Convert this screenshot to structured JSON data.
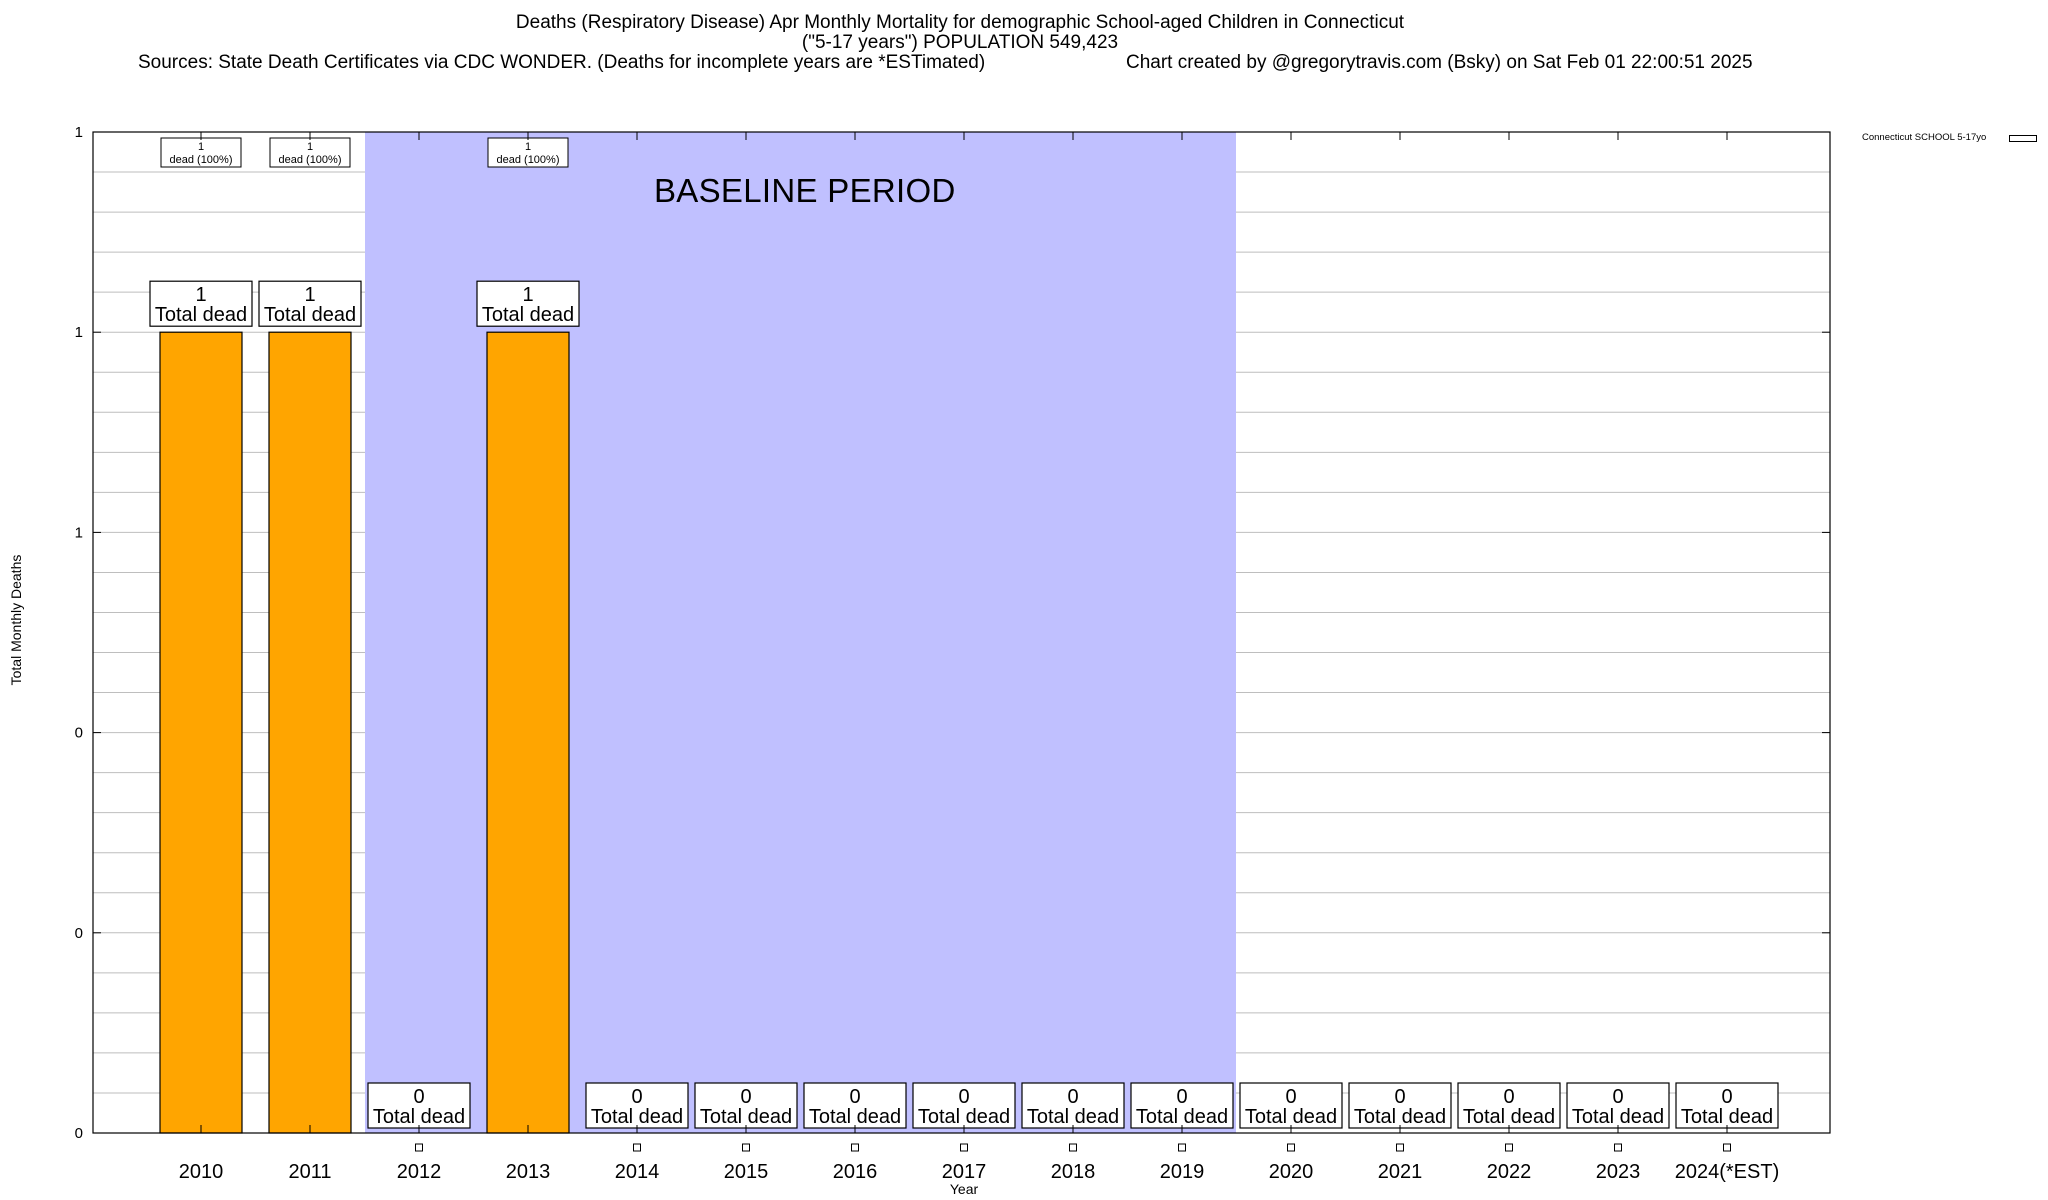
{
  "title": {
    "line1": "Deaths (Respiratory Disease) Apr Monthly Mortality for demographic School-aged Children in Connecticut",
    "line2": "(\"5-17 years\") POPULATION 549,423",
    "sources": "Sources: State Death Certificates via CDC WONDER. (Deaths for incomplete years are *ESTimated)",
    "credit": "Chart created by @gregorytravis.com (Bsky) on Sat Feb 01 22:00:51 2025"
  },
  "colors": {
    "bar": "#FFA500",
    "baseline_shade": "#C0C0FF",
    "grid": "#BEBEBE",
    "axis": "#000000"
  },
  "chart_data": {
    "type": "bar",
    "xlabel": "Year",
    "ylabel": "Total Monthly Deaths",
    "ylim": [
      0,
      1.25
    ],
    "ytick_values": [
      0,
      0.25,
      0.5,
      0.75,
      1,
      1.25
    ],
    "ytick_labels": [
      "0",
      "0",
      "0",
      "1",
      "1",
      "1"
    ],
    "grid": true,
    "legend": {
      "position": "top-right",
      "entries": [
        {
          "label": "Connecticut SCHOOL 5-17yo",
          "color": "#FFA500"
        }
      ]
    },
    "categories": [
      "2010",
      "2011",
      "2012",
      "2013",
      "2014",
      "2015",
      "2016",
      "2017",
      "2018",
      "2019",
      "2020",
      "2021",
      "2022",
      "2023",
      "2024(*EST)"
    ],
    "series": [
      {
        "name": "Connecticut SCHOOL 5-17yo",
        "values": [
          1,
          1,
          0,
          1,
          0,
          0,
          0,
          0,
          0,
          0,
          0,
          0,
          0,
          0,
          0
        ]
      }
    ],
    "total_labels": [
      "1",
      "1",
      "0",
      "1",
      "0",
      "0",
      "0",
      "0",
      "0",
      "0",
      "0",
      "0",
      "0",
      "0",
      "0"
    ],
    "total_suffix": "Total dead",
    "inner_labels": [
      {
        "year": "2010",
        "count": "1",
        "text": "dead (100%)"
      },
      {
        "year": "2011",
        "count": "1",
        "text": "dead (100%)"
      },
      {
        "year": "2013",
        "count": "1",
        "text": "dead (100%)"
      }
    ],
    "baseline_period": {
      "label": "BASELINE PERIOD",
      "from": "2012",
      "to": "2019"
    }
  }
}
